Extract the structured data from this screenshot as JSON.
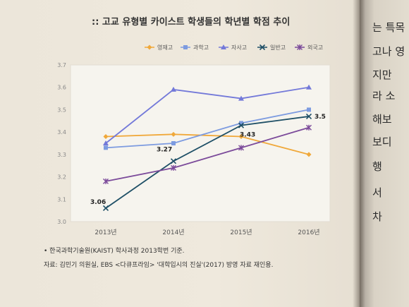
{
  "title": ":: 고교 유형별 카이스트 학생들의 학년별 학점 추이",
  "chart_data": {
    "type": "line",
    "categories": [
      "2013년",
      "2014년",
      "2015년",
      "2016년"
    ],
    "ylim": [
      3.0,
      3.7
    ],
    "yticks": [
      "3.0",
      "3.1",
      "3.2",
      "3.3",
      "3.4",
      "3.5",
      "3.6",
      "3.7"
    ],
    "legend_position": "top",
    "grid": false,
    "series": [
      {
        "name": "영재고",
        "color": "#f0a83a",
        "marker": "diamond",
        "values": [
          3.38,
          3.39,
          3.38,
          3.3
        ]
      },
      {
        "name": "과학고",
        "color": "#7d9be0",
        "marker": "square",
        "values": [
          3.33,
          3.35,
          3.44,
          3.5
        ]
      },
      {
        "name": "자사고",
        "color": "#7379d9",
        "marker": "triangle",
        "values": [
          3.35,
          3.59,
          3.55,
          3.6
        ]
      },
      {
        "name": "일반고",
        "color": "#1e4f66",
        "marker": "x",
        "values": [
          3.06,
          3.27,
          3.43,
          3.47
        ]
      },
      {
        "name": "외국고",
        "color": "#7b4a9a",
        "marker": "star",
        "values": [
          3.18,
          3.24,
          3.33,
          3.42
        ]
      }
    ],
    "annotations": [
      {
        "series": "일반고",
        "index": 0,
        "text": "3.06"
      },
      {
        "series": "일반고",
        "index": 1,
        "text": "3.27"
      },
      {
        "series": "일반고",
        "index": 2,
        "text": "3.43"
      },
      {
        "series": "일반고",
        "index": 3,
        "text": "3.5"
      }
    ]
  },
  "notes": [
    "• 한국과학기술원(KAIST) 학사과정 2013학번 기준.",
    "자료: 김민기 의원실, EBS <다큐프라임> '대학입시의 진실'(2017) 방영 자료 재인용."
  ],
  "right_page_lines": [
    "는 특목",
    "고나 영",
    "지만",
    "라 소",
    "해보",
    "보디",
    "행",
    "서",
    "차"
  ]
}
